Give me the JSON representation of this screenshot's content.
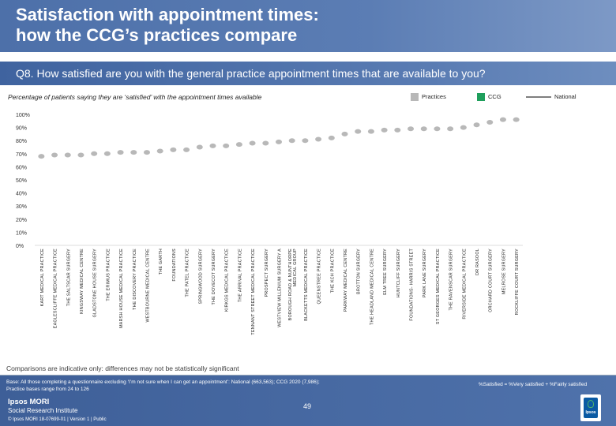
{
  "header": {
    "title_line1": "Satisfaction with appointment times:",
    "title_line2": "how the CCG’s practices compare"
  },
  "question": "Q8. How satisfied are you with the general practice appointment times that are available to you?",
  "subtitle": "Percentage of patients saying they are ‘satisfied’ with the appointment times available",
  "legend": {
    "practices": "Practices",
    "ccg": "CCG",
    "national": "National"
  },
  "colors": {
    "practice_bar": "#b8b8b8",
    "ccg_bar": "#1f9f5c",
    "national_line": "#7e7e7e",
    "header_blue": "#4d70a9"
  },
  "chart_data": {
    "type": "bar",
    "title": "Q8. How satisfied are you with the general practice appointment times that are available to you?",
    "xlabel": "",
    "ylabel": "Percentage of patients saying they are ‘satisfied’",
    "ylim": [
      0,
      100
    ],
    "y_ticks": [
      "0%",
      "10%",
      "20%",
      "30%",
      "40%",
      "50%",
      "60%",
      "70%",
      "80%",
      "90%",
      "100%"
    ],
    "grid": false,
    "categories": [
      "KART MEDICAL PRACTICE",
      "EAGLESCLIFFE MEDICAL PRACTICE",
      "THE SALTSCAR SURGERY",
      "KINGSWAY MEDICAL CENTRE",
      "GLADSTONE HOUSE SURGERY",
      "THE ERIMUS PRACTICE",
      "MARSH HOUSE MEDICAL PRACTICE",
      "THE DISCOVERY PRACTICE",
      "WESTBOURNE MEDICAL CENTRE",
      "THE GARTH",
      "FOUNDATIONS",
      "THE PATEL PRACTICE",
      "SPRINGWOOD SURGERY",
      "THE DOVECOT SURGERY",
      "KIRKGS MEDICAL PRACTICE",
      "THE ARRIVAL PRACTICE",
      "TENNANT STREET MEDICAL PRACTICE",
      "PROSPECT SURGERY",
      "WESTVIEW MILLENIUM SURGERY A",
      "BOROUGH ROAD & NUNTHORPE MEDICAL GROUP",
      "BLACKETTS MEDICAL PRACTICE",
      "QUEENSTREE PRACTICE",
      "THE KCH PRACTICE",
      "PARKWAY MEDICAL CENTRE",
      "BROTTON SURGERY",
      "THE HEADLAND MEDICAL CENTRE",
      "ELM TREE SURGERY",
      "HUNTCLIFF SURGERY",
      "FOUNDATIONS- HARRIS STREET",
      "PARK LANE SURGERY",
      "ST GEORGES MEDICAL PRACTICE",
      "THE RAVENSCAR SURGERY",
      "RIVERSIDE MEDICAL PRACTICE",
      "DR RASOOL",
      "ORCHARD COURT SURGERY",
      "MELROSE SURGERY",
      "ROCKLIFFE COURT SURGERY"
    ],
    "series": [
      {
        "name": "Practices",
        "values": [
          68,
          69,
          69,
          69,
          70,
          70,
          71,
          71,
          71,
          72,
          73,
          73,
          75,
          76,
          76,
          77,
          78,
          78,
          79,
          80,
          80,
          81,
          82,
          85,
          87,
          87,
          88,
          88,
          89,
          89,
          89,
          89,
          90,
          92,
          94,
          96,
          96
        ]
      }
    ],
    "ccg_value": null,
    "national_value": null
  },
  "comparisons_note": "Comparisons are indicative only: differences may not be statistically significant",
  "base": {
    "line1": "Base: All those completing a questionnaire excluding ‘I’m not sure when I can get an appointment’: National (663,563); CCG 2020 (7,986);",
    "line2": "Practice bases range from 24 to 126"
  },
  "footnote": "%Satisfied = %Very satisfied + %Fairly satisfied",
  "brand": {
    "line1": "Ipsos MORI",
    "line2": "Social Research Institute"
  },
  "copyright": "© Ipsos MORI      18-07699-01 | Version 1 | Public",
  "page_number": "49",
  "logo_text": "Ipsos"
}
